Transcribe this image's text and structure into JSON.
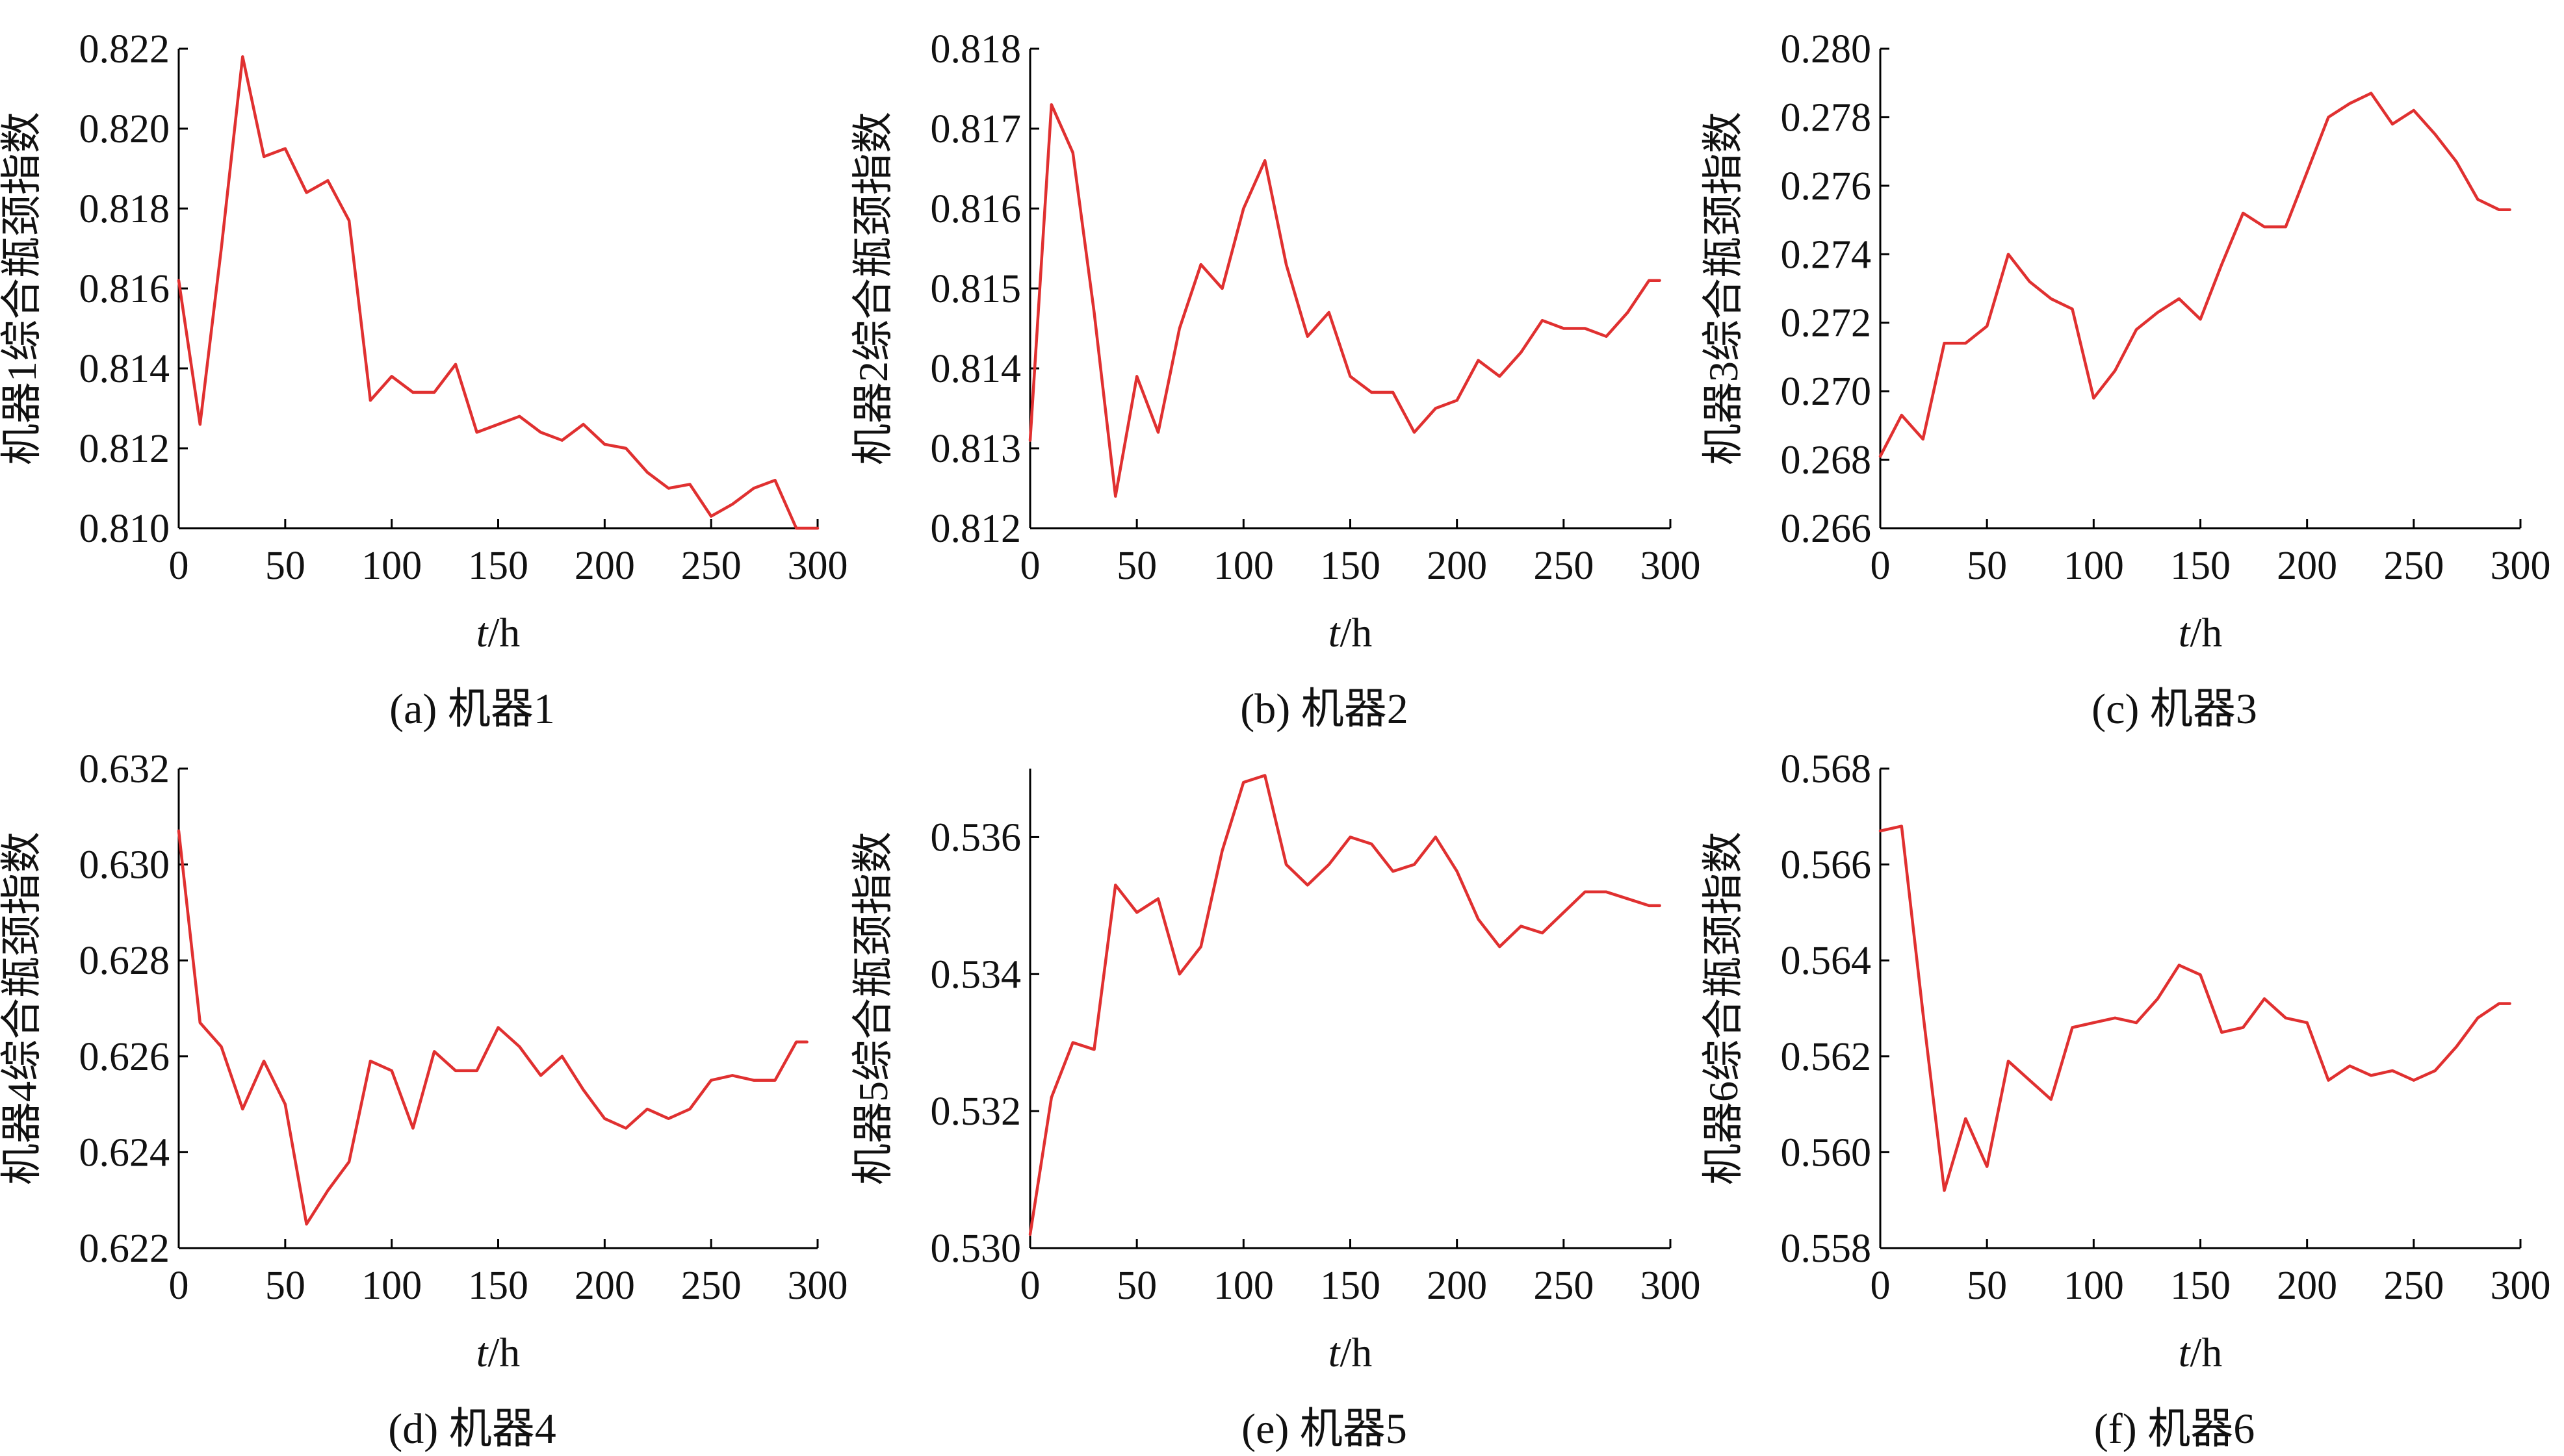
{
  "style": {
    "line_color": "#e03030",
    "axis_color": "#000000"
  },
  "chart_data": [
    {
      "type": "line",
      "caption": "(a) 机器1",
      "xlabel_italic": "t",
      "xlabel_rest": "/h",
      "ylabel": "机器1综合瓶颈指数",
      "xlim": [
        0,
        300
      ],
      "ylim": [
        0.81,
        0.822
      ],
      "xticks": [
        "0",
        "50",
        "100",
        "150",
        "200",
        "250",
        "300"
      ],
      "yticks": [
        "0.810",
        "0.812",
        "0.814",
        "0.816",
        "0.818",
        "0.820",
        "0.822"
      ],
      "x": [
        0,
        10,
        20,
        30,
        40,
        50,
        60,
        70,
        80,
        90,
        100,
        110,
        120,
        130,
        140,
        150,
        160,
        170,
        180,
        190,
        200,
        210,
        220,
        230,
        240,
        250,
        260,
        270,
        280,
        290,
        300
      ],
      "values": [
        0.8162,
        0.8126,
        0.817,
        0.8218,
        0.8193,
        0.8195,
        0.8184,
        0.8187,
        0.8177,
        0.8132,
        0.8138,
        0.8134,
        0.8134,
        0.8141,
        0.8124,
        0.8126,
        0.8128,
        0.8124,
        0.8122,
        0.8126,
        0.8121,
        0.812,
        0.8114,
        0.811,
        0.8111,
        0.8103,
        0.8106,
        0.811,
        0.8112,
        0.81,
        0.81
      ]
    },
    {
      "type": "line",
      "caption": "(b) 机器2",
      "xlabel_italic": "t",
      "xlabel_rest": "/h",
      "ylabel": "机器2综合瓶颈指数",
      "xlim": [
        0,
        300
      ],
      "ylim": [
        0.812,
        0.818
      ],
      "xticks": [
        "0",
        "50",
        "100",
        "150",
        "200",
        "250",
        "300"
      ],
      "yticks": [
        "0.812",
        "0.813",
        "0.814",
        "0.815",
        "0.816",
        "0.817",
        "0.818"
      ],
      "x": [
        0,
        10,
        20,
        30,
        40,
        50,
        60,
        70,
        80,
        90,
        100,
        110,
        120,
        130,
        140,
        150,
        160,
        170,
        180,
        190,
        200,
        210,
        220,
        230,
        240,
        250,
        260,
        270,
        280,
        290,
        295
      ],
      "values": [
        0.8131,
        0.8173,
        0.8167,
        0.8147,
        0.8124,
        0.8139,
        0.8132,
        0.8145,
        0.8153,
        0.815,
        0.816,
        0.8166,
        0.8153,
        0.8144,
        0.8147,
        0.8139,
        0.8137,
        0.8137,
        0.8132,
        0.8135,
        0.8136,
        0.8141,
        0.8139,
        0.8142,
        0.8146,
        0.8145,
        0.8145,
        0.8144,
        0.8147,
        0.8151,
        0.8151
      ]
    },
    {
      "type": "line",
      "caption": "(c) 机器3",
      "xlabel_italic": "t",
      "xlabel_rest": "/h",
      "ylabel": "机器3综合瓶颈指数",
      "xlim": [
        0,
        300
      ],
      "ylim": [
        0.266,
        0.28
      ],
      "xticks": [
        "0",
        "50",
        "100",
        "150",
        "200",
        "250",
        "300"
      ],
      "yticks": [
        "0.266",
        "0.268",
        "0.270",
        "0.272",
        "0.274",
        "0.276",
        "0.278",
        "0.280"
      ],
      "x": [
        0,
        10,
        20,
        30,
        40,
        50,
        60,
        70,
        80,
        90,
        100,
        110,
        120,
        130,
        140,
        150,
        160,
        170,
        180,
        190,
        200,
        210,
        220,
        230,
        240,
        250,
        260,
        270,
        280,
        290,
        295
      ],
      "values": [
        0.2681,
        0.2693,
        0.2686,
        0.2714,
        0.2714,
        0.2719,
        0.274,
        0.2732,
        0.2727,
        0.2724,
        0.2698,
        0.2706,
        0.2718,
        0.2723,
        0.2727,
        0.2721,
        0.2737,
        0.2752,
        0.2748,
        0.2748,
        0.2764,
        0.278,
        0.2784,
        0.2787,
        0.2778,
        0.2782,
        0.2775,
        0.2767,
        0.2756,
        0.2753,
        0.2753
      ]
    },
    {
      "type": "line",
      "caption": "(d) 机器4",
      "xlabel_italic": "t",
      "xlabel_rest": "/h",
      "ylabel": "机器4综合瓶颈指数",
      "xlim": [
        0,
        300
      ],
      "ylim": [
        0.622,
        0.632
      ],
      "xticks": [
        "0",
        "50",
        "100",
        "150",
        "200",
        "250",
        "300"
      ],
      "yticks": [
        "0.622",
        "0.624",
        "0.626",
        "0.628",
        "0.630",
        "0.632"
      ],
      "x": [
        0,
        10,
        20,
        30,
        40,
        50,
        60,
        70,
        80,
        90,
        100,
        110,
        120,
        130,
        140,
        150,
        160,
        170,
        180,
        190,
        200,
        210,
        220,
        230,
        240,
        250,
        260,
        270,
        280,
        290,
        295
      ],
      "values": [
        0.6307,
        0.6267,
        0.6262,
        0.6249,
        0.6259,
        0.625,
        0.6225,
        0.6232,
        0.6238,
        0.6259,
        0.6257,
        0.6245,
        0.6261,
        0.6257,
        0.6257,
        0.6266,
        0.6262,
        0.6256,
        0.626,
        0.6253,
        0.6247,
        0.6245,
        0.6249,
        0.6247,
        0.6249,
        0.6255,
        0.6256,
        0.6255,
        0.6255,
        0.6263,
        0.6263
      ]
    },
    {
      "type": "line",
      "caption": "(e) 机器5",
      "xlabel_italic": "t",
      "xlabel_rest": "/h",
      "ylabel": "机器5综合瓶颈指数",
      "xlim": [
        0,
        300
      ],
      "ylim": [
        0.53,
        0.537
      ],
      "xticks": [
        "0",
        "50",
        "100",
        "150",
        "200",
        "250",
        "300"
      ],
      "yticks": [
        "0.530",
        "0.532",
        "0.534",
        "0.536"
      ],
      "x": [
        0,
        10,
        20,
        30,
        40,
        50,
        60,
        70,
        80,
        90,
        100,
        110,
        120,
        130,
        140,
        150,
        160,
        170,
        180,
        190,
        200,
        210,
        220,
        230,
        240,
        250,
        260,
        270,
        280,
        290,
        295
      ],
      "values": [
        0.5302,
        0.5322,
        0.533,
        0.5329,
        0.5353,
        0.5349,
        0.5351,
        0.534,
        0.5344,
        0.5358,
        0.5368,
        0.5369,
        0.5356,
        0.5353,
        0.5356,
        0.536,
        0.5359,
        0.5355,
        0.5356,
        0.536,
        0.5355,
        0.5348,
        0.5344,
        0.5347,
        0.5346,
        0.5349,
        0.5352,
        0.5352,
        0.5351,
        0.535,
        0.535
      ]
    },
    {
      "type": "line",
      "caption": "(f) 机器6",
      "xlabel_italic": "t",
      "xlabel_rest": "/h",
      "ylabel": "机器6综合瓶颈指数",
      "xlim": [
        0,
        300
      ],
      "ylim": [
        0.558,
        0.568
      ],
      "xticks": [
        "0",
        "50",
        "100",
        "150",
        "200",
        "250",
        "300"
      ],
      "yticks": [
        "0.558",
        "0.560",
        "0.562",
        "0.564",
        "0.566",
        "0.568"
      ],
      "x": [
        0,
        10,
        20,
        30,
        40,
        50,
        60,
        70,
        80,
        90,
        100,
        110,
        120,
        130,
        140,
        150,
        160,
        170,
        180,
        190,
        200,
        210,
        220,
        230,
        240,
        250,
        260,
        270,
        280,
        290,
        295
      ],
      "values": [
        0.5667,
        0.5668,
        0.5629,
        0.5592,
        0.5607,
        0.5597,
        0.5619,
        0.5615,
        0.5611,
        0.5626,
        0.5627,
        0.5628,
        0.5627,
        0.5632,
        0.5639,
        0.5637,
        0.5625,
        0.5626,
        0.5632,
        0.5628,
        0.5627,
        0.5615,
        0.5618,
        0.5616,
        0.5617,
        0.5615,
        0.5617,
        0.5622,
        0.5628,
        0.5631,
        0.5631
      ]
    }
  ]
}
